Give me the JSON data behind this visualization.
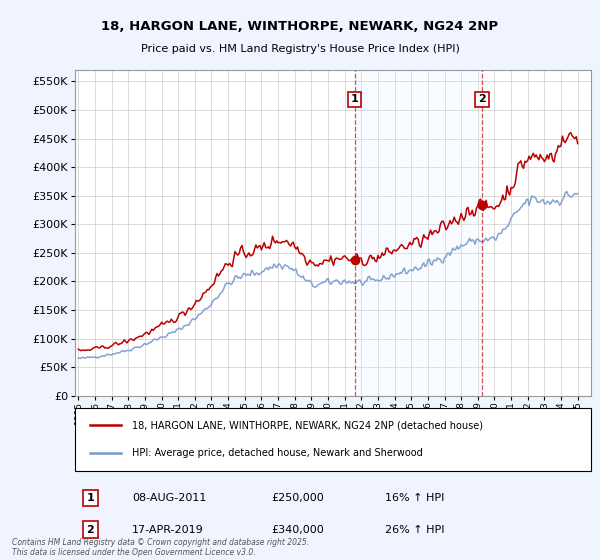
{
  "title_line1": "18, HARGON LANE, WINTHORPE, NEWARK, NG24 2NP",
  "title_line2": "Price paid vs. HM Land Registry's House Price Index (HPI)",
  "background_color": "#f0f4ff",
  "plot_bg_color": "#ffffff",
  "grid_color": "#cccccc",
  "red_color": "#bb0000",
  "blue_color": "#7799cc",
  "vline_color": "#cc3333",
  "shade_color": "#ddeeff",
  "ylabel_ticks": [
    "£0",
    "£50K",
    "£100K",
    "£150K",
    "£200K",
    "£250K",
    "£300K",
    "£350K",
    "£400K",
    "£450K",
    "£500K",
    "£550K"
  ],
  "ytick_values": [
    0,
    50000,
    100000,
    150000,
    200000,
    250000,
    300000,
    350000,
    400000,
    450000,
    500000,
    550000
  ],
  "ylim": [
    0,
    570000
  ],
  "xlim_start": 1994.8,
  "xlim_end": 2025.8,
  "sale1_x": 2011.6,
  "sale1_label": "1",
  "sale1_date": "08-AUG-2011",
  "sale1_price": "£250,000",
  "sale1_hpi": "16% ↑ HPI",
  "sale2_x": 2019.25,
  "sale2_label": "2",
  "sale2_date": "17-APR-2019",
  "sale2_price": "£340,000",
  "sale2_hpi": "26% ↑ HPI",
  "legend_line1": "18, HARGON LANE, WINTHORPE, NEWARK, NG24 2NP (detached house)",
  "legend_line2": "HPI: Average price, detached house, Newark and Sherwood",
  "footnote": "Contains HM Land Registry data © Crown copyright and database right 2025.\nThis data is licensed under the Open Government Licence v3.0."
}
